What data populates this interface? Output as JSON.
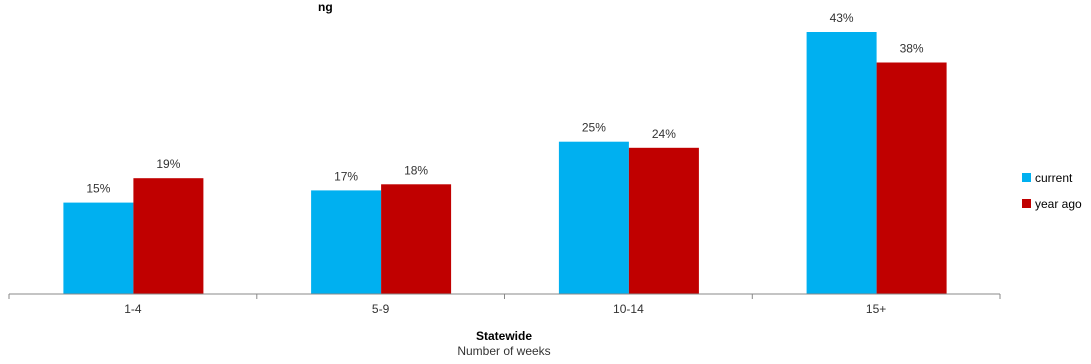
{
  "chart_data": {
    "type": "bar",
    "title": "ng",
    "categories": [
      "1-4",
      "5-9",
      "10-14",
      "15+"
    ],
    "series": [
      {
        "name": "current",
        "color": "#00b0f0",
        "values": [
          15,
          17,
          25,
          43
        ],
        "labels": [
          "15%",
          "17%",
          "25%",
          "43%"
        ]
      },
      {
        "name": "year ago",
        "color": "#c00000",
        "values": [
          19,
          18,
          24,
          38
        ],
        "labels": [
          "19%",
          "18%",
          "24%",
          "38%"
        ]
      }
    ],
    "xlabel": "Statewide",
    "xlabel_sub": "Number of weeks",
    "ylabel": "",
    "ylim": [
      0,
      45
    ],
    "grid": false,
    "legend": "right"
  }
}
